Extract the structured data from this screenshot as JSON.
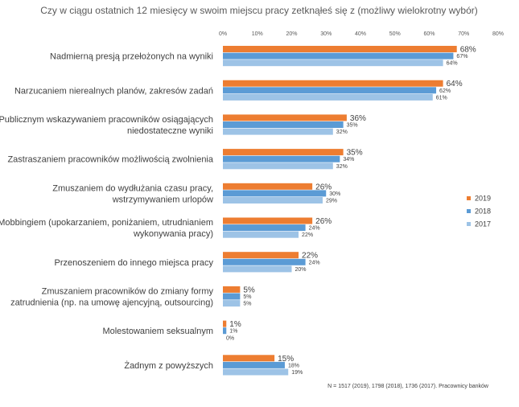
{
  "chart_data": {
    "type": "bar",
    "orientation": "horizontal",
    "title": "Czy w ciągu ostatnich 12 miesięcy w swoim miejscu pracy zetknąłeś się z (możliwy wielokrotny wybór)",
    "xlim": [
      0,
      80
    ],
    "x_ticks": [
      "0%",
      "10%",
      "20%",
      "30%",
      "40%",
      "50%",
      "60%",
      "70%",
      "80%"
    ],
    "x_axis_position": "top",
    "grid": false,
    "legend_position": "right",
    "categories": [
      [
        "Nadmierną presją przełożonych na wyniki"
      ],
      [
        "Narzucaniem nierealnych planów, zakresów zadań"
      ],
      [
        "Publicznym wskazywaniem pracowników osiągających",
        "niedostateczne wyniki"
      ],
      [
        "Zastraszaniem pracowników możliwością zwolnienia"
      ],
      [
        "Zmuszaniem do wydłużania czasu pracy,",
        "wstrzymywaniem urlopów"
      ],
      [
        "Mobbingiem (upokarzaniem, poniżaniem, utrudnianiem",
        "wykonywania pracy)"
      ],
      [
        "Przenoszeniem do innego miejsca pracy"
      ],
      [
        "Zmuszaniem pracowników do zmiany formy",
        "zatrudnienia (np. na umowę ajencyjną, outsourcing)"
      ],
      [
        "Molestowaniem seksualnym"
      ],
      [
        "Żadnym z powyższych"
      ]
    ],
    "series": [
      {
        "name": "2019",
        "color": "#ED7D31",
        "values": [
          68,
          64,
          36,
          35,
          26,
          26,
          22,
          5,
          1,
          15
        ],
        "labels": [
          "68%",
          "64%",
          "36%",
          "35%",
          "26%",
          "26%",
          "22%",
          "5%",
          "1%",
          "15%"
        ]
      },
      {
        "name": "2018",
        "color": "#5B9BD5",
        "values": [
          67,
          62,
          35,
          34,
          30,
          24,
          24,
          5,
          1,
          18
        ],
        "labels": [
          "67%",
          "62%",
          "35%",
          "34%",
          "30%",
          "24%",
          "24%",
          "5%",
          "1%",
          "18%"
        ]
      },
      {
        "name": "2017",
        "color": "#9DC3E6",
        "values": [
          64,
          61,
          32,
          32,
          29,
          22,
          20,
          5,
          0,
          19
        ],
        "labels": [
          "64%",
          "61%",
          "32%",
          "32%",
          "29%",
          "22%",
          "20%",
          "5%",
          "0%",
          "19%"
        ]
      }
    ],
    "note": "N = 1517 (2019), 1798 (2018), 1736 (2017). Pracownicy banków"
  }
}
